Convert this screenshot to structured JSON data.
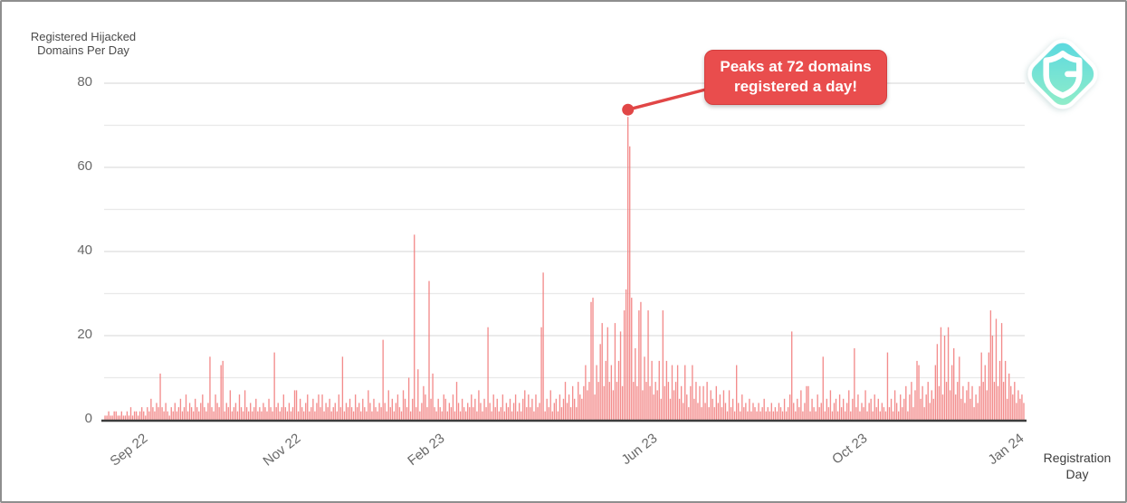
{
  "chart_data": {
    "type": "bar",
    "title": "",
    "bar_color": "#f17c7c",
    "grid": true,
    "legend": "none",
    "y_axis": {
      "title_lines": [
        "Registered Hijacked",
        "Domains Per Day"
      ],
      "ticks": [
        0,
        20,
        40,
        60,
        80
      ],
      "ylim": [
        0,
        80
      ],
      "gridline_step": 10
    },
    "x_axis": {
      "title_lines": [
        "Registration",
        "Day"
      ],
      "ticks": [
        {
          "label": "Sep 22",
          "pos": 0.034
        },
        {
          "label": "Nov 22",
          "pos": 0.201
        },
        {
          "label": "Feb 23",
          "pos": 0.357
        },
        {
          "label": "Jun 23",
          "pos": 0.588
        },
        {
          "label": "Oct 23",
          "pos": 0.816
        },
        {
          "label": "Jan 24",
          "pos": 0.986
        }
      ]
    },
    "annotation": {
      "text_lines": [
        "Peaks at 72 domains",
        "registered a day!"
      ],
      "value": 72,
      "peak_index": 284,
      "box_color": "#e94d4d",
      "text_color": "#ffffff",
      "line_color": "#e14646"
    },
    "values": [
      1,
      1,
      2,
      1,
      1,
      2,
      2,
      1,
      1,
      2,
      1,
      1,
      2,
      1,
      3,
      1,
      2,
      2,
      1,
      2,
      3,
      2,
      1,
      3,
      2,
      5,
      3,
      2,
      4,
      3,
      11,
      3,
      2,
      4,
      2,
      1,
      3,
      2,
      4,
      2,
      3,
      5,
      2,
      3,
      6,
      2,
      4,
      3,
      2,
      5,
      3,
      2,
      4,
      6,
      3,
      2,
      4,
      15,
      3,
      2,
      6,
      4,
      3,
      13,
      14,
      2,
      4,
      3,
      7,
      2,
      3,
      4,
      2,
      6,
      3,
      2,
      7,
      3,
      2,
      4,
      2,
      3,
      5,
      2,
      3,
      2,
      4,
      3,
      2,
      5,
      3,
      2,
      16,
      3,
      4,
      2,
      3,
      6,
      3,
      2,
      4,
      2,
      3,
      7,
      7,
      2,
      5,
      3,
      2,
      4,
      6,
      2,
      3,
      5,
      2,
      4,
      6,
      3,
      6,
      2,
      4,
      3,
      5,
      2,
      3,
      4,
      2,
      6,
      3,
      15,
      2,
      4,
      3,
      5,
      3,
      2,
      6,
      3,
      4,
      2,
      5,
      3,
      2,
      7,
      4,
      2,
      5,
      3,
      2,
      4,
      3,
      19,
      4,
      2,
      7,
      3,
      5,
      2,
      4,
      6,
      3,
      2,
      7,
      5,
      3,
      10,
      2,
      5,
      44,
      3,
      12,
      2,
      4,
      8,
      6,
      3,
      33,
      5,
      11,
      3,
      2,
      5,
      3,
      2,
      6,
      5,
      2,
      4,
      3,
      6,
      2,
      9,
      4,
      2,
      5,
      3,
      2,
      4,
      3,
      6,
      3,
      5,
      2,
      7,
      4,
      2,
      5,
      3,
      22,
      4,
      2,
      6,
      3,
      5,
      2,
      3,
      6,
      2,
      4,
      3,
      5,
      2,
      4,
      6,
      2,
      4,
      2,
      5,
      7,
      3,
      6,
      3,
      5,
      2,
      6,
      3,
      4,
      22,
      35,
      2,
      5,
      3,
      7,
      2,
      4,
      5,
      2,
      6,
      3,
      5,
      9,
      4,
      6,
      3,
      8,
      5,
      3,
      9,
      6,
      5,
      8,
      13,
      7,
      9,
      28,
      29,
      6,
      13,
      9,
      18,
      23,
      8,
      14,
      22,
      9,
      13,
      7,
      23,
      9,
      14,
      21,
      8,
      26,
      31,
      72,
      65,
      29,
      9,
      17,
      8,
      26,
      28,
      7,
      15,
      9,
      26,
      8,
      14,
      6,
      9,
      7,
      14,
      5,
      26,
      8,
      14,
      9,
      5,
      13,
      7,
      9,
      13,
      5,
      8,
      4,
      13,
      6,
      3,
      8,
      13,
      5,
      9,
      4,
      8,
      3,
      8,
      4,
      9,
      3,
      7,
      5,
      3,
      8,
      4,
      6,
      3,
      7,
      4,
      2,
      7,
      3,
      5,
      2,
      13,
      4,
      2,
      6,
      3,
      4,
      2,
      5,
      2,
      4,
      3,
      2,
      4,
      2,
      3,
      5,
      2,
      3,
      2,
      4,
      2,
      3,
      2,
      4,
      3,
      2,
      5,
      2,
      3,
      6,
      21,
      4,
      2,
      5,
      3,
      7,
      2,
      4,
      8,
      8,
      2,
      5,
      3,
      2,
      6,
      3,
      4,
      15,
      2,
      5,
      3,
      7,
      2,
      4,
      5,
      2,
      6,
      3,
      5,
      2,
      4,
      7,
      2,
      5,
      17,
      3,
      6,
      2,
      4,
      3,
      7,
      2,
      4,
      5,
      2,
      6,
      3,
      5,
      2,
      4,
      3,
      2,
      16,
      3,
      5,
      2,
      7,
      4,
      2,
      6,
      3,
      5,
      8,
      2,
      6,
      9,
      3,
      7,
      14,
      13,
      5,
      8,
      3,
      6,
      9,
      4,
      7,
      5,
      13,
      18,
      8,
      22,
      6,
      20,
      9,
      22,
      7,
      13,
      17,
      6,
      9,
      15,
      5,
      8,
      4,
      7,
      9,
      5,
      8,
      3,
      6,
      4,
      8,
      16,
      9,
      13,
      7,
      16,
      26,
      20,
      9,
      24,
      8,
      14,
      23,
      9,
      14,
      5,
      11,
      8,
      6,
      9,
      4,
      7,
      5,
      6,
      4
    ]
  },
  "logo": {
    "name": "guardio-shield-logo",
    "gradient_start": "#56d7e2",
    "gradient_end": "#96efc6",
    "glyph": "shield-g-icon"
  },
  "style": {
    "axis_line_color": "#3c3c3c",
    "major_grid_color": "#dddddd",
    "minor_grid_color": "#e9e9e9",
    "tick_text_color": "#696969",
    "frame_border_color": "#8e8e8e"
  }
}
